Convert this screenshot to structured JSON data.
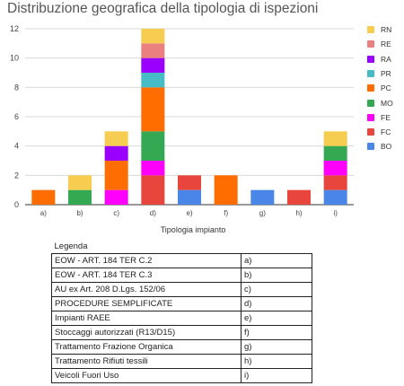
{
  "chart_data": {
    "type": "bar",
    "stacked": true,
    "title": "Distribuzione geografica della tipologia di ispezioni",
    "xlabel": "Tipologia impianto",
    "ylabel": "",
    "ylim": [
      0,
      12
    ],
    "yticks": [
      0,
      2,
      4,
      6,
      8,
      10,
      12
    ],
    "grid": true,
    "legend_position": "right",
    "categories": [
      "a)",
      "b)",
      "c)",
      "d)",
      "e)",
      "f)",
      "g)",
      "h)",
      "i)"
    ],
    "series": [
      {
        "name": "BO",
        "color": "#4a86e8",
        "values": [
          0,
          0,
          0,
          0,
          1,
          0,
          1,
          0,
          1
        ]
      },
      {
        "name": "FC",
        "color": "#e8453c",
        "values": [
          0,
          0,
          0,
          2,
          1,
          0,
          0,
          1,
          1
        ]
      },
      {
        "name": "FE",
        "color": "#ff00ff",
        "values": [
          0,
          0,
          1,
          1,
          0,
          0,
          0,
          0,
          1
        ]
      },
      {
        "name": "MO",
        "color": "#34a853",
        "values": [
          0,
          1,
          0,
          2,
          0,
          0,
          0,
          0,
          1
        ]
      },
      {
        "name": "PC",
        "color": "#ff6d01",
        "values": [
          1,
          0,
          2,
          3,
          0,
          2,
          0,
          0,
          0
        ]
      },
      {
        "name": "PR",
        "color": "#46bdc6",
        "values": [
          0,
          0,
          0,
          1,
          0,
          0,
          0,
          0,
          0
        ]
      },
      {
        "name": "RA",
        "color": "#9900ff",
        "values": [
          0,
          0,
          1,
          1,
          0,
          0,
          0,
          0,
          0
        ]
      },
      {
        "name": "RE",
        "color": "#ea8080",
        "values": [
          0,
          0,
          0,
          1,
          0,
          0,
          0,
          0,
          0
        ]
      },
      {
        "name": "RN",
        "color": "#f6cd50",
        "values": [
          0,
          1,
          1,
          1,
          0,
          0,
          0,
          0,
          1
        ]
      }
    ]
  },
  "legend_table": {
    "header": "Legenda",
    "rows": [
      {
        "description": "EOW - ART. 184 TER C.2",
        "code": "a)"
      },
      {
        "description": "EOW - ART. 184 TER C.3",
        "code": "b)"
      },
      {
        "description": "AU ex Art. 208 D.Lgs. 152/06",
        "code": "c)"
      },
      {
        "description": "PROCEDURE SEMPLIFICATE",
        "code": "d)"
      },
      {
        "description": "Impianti RAEE",
        "code": "e)"
      },
      {
        "description": "Stoccaggi autorizzati (R13/D15)",
        "code": "f)"
      },
      {
        "description": "Trattamento Frazione Organica",
        "code": "g)"
      },
      {
        "description": "Trattamento Rifiuti tessili",
        "code": "h)"
      },
      {
        "description": "Veicoli Fuori Uso",
        "code": "i)"
      }
    ]
  }
}
